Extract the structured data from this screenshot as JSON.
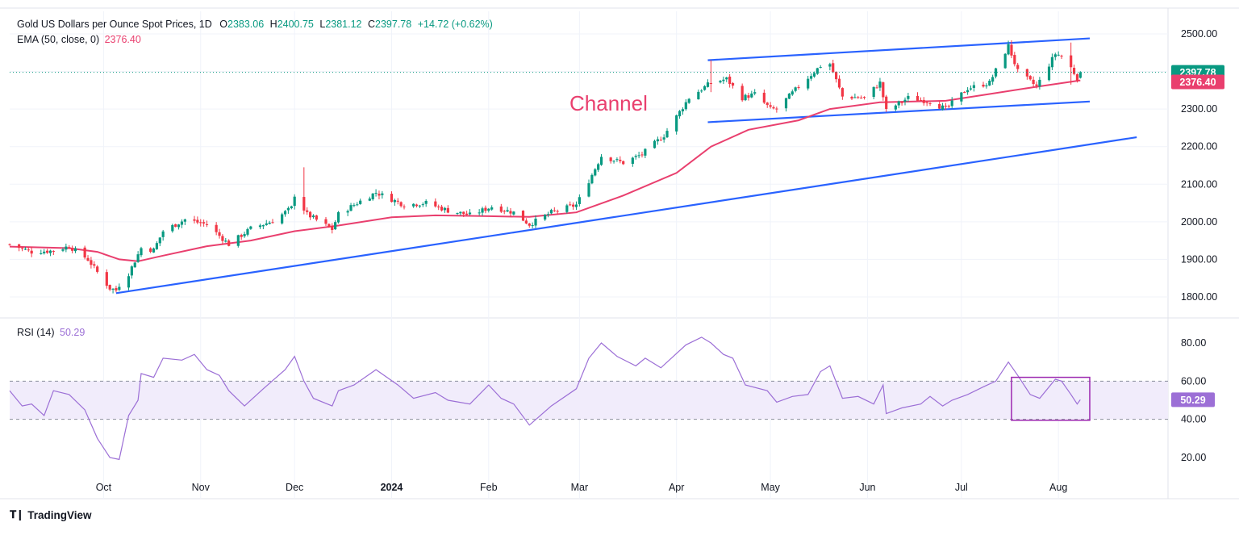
{
  "header": {
    "symbol": "Gold US Dollars per Ounce Spot Prices, 1D",
    "open_label": "O",
    "open": "2383.06",
    "high_label": "H",
    "high": "2400.75",
    "low_label": "L",
    "low": "2381.12",
    "close_label": "C",
    "close": "2397.78",
    "change": "+14.72 (+0.62%)"
  },
  "ema_legend": {
    "label": "EMA (50, close, 0)",
    "value": "2376.40"
  },
  "rsi_legend": {
    "label": "RSI (14)",
    "value": "50.29"
  },
  "annotation": {
    "text": "Channel"
  },
  "price_axis": {
    "ticks": [
      "2500.00",
      "2400.00",
      "2300.00",
      "2200.00",
      "2100.00",
      "2000.00",
      "1900.00",
      "1800.00"
    ],
    "last_price_badge": "2397.78",
    "ema_badge": "2376.40"
  },
  "rsi_axis": {
    "ticks": [
      "80.00",
      "60.00",
      "40.00",
      "20.00"
    ],
    "badge": "50.29"
  },
  "time_axis": {
    "labels": [
      "Oct",
      "Nov",
      "Dec",
      "2024",
      "Feb",
      "Mar",
      "Apr",
      "May",
      "Jun",
      "Jul",
      "Aug"
    ]
  },
  "footer": {
    "brand": "TradingView"
  },
  "colors": {
    "up": "#089981",
    "down": "#f23645",
    "ema": "#e93f6e",
    "rsi": "#9c6fd6",
    "trend": "#2962ff"
  },
  "chart_data": [
    {
      "type": "candlestick",
      "title": "Gold US Dollars per Ounce Spot Prices, 1D",
      "ylim": [
        1760,
        2530
      ],
      "x_range": [
        "2023-09-01",
        "2024-09-05"
      ],
      "last": {
        "open": 2383.06,
        "high": 2400.75,
        "low": 2381.12,
        "close": 2397.78
      },
      "close_path": [
        [
          "2023-09-01",
          1940
        ],
        [
          "2023-09-08",
          1920
        ],
        [
          "2023-09-15",
          1923
        ],
        [
          "2023-09-20",
          1935
        ],
        [
          "2023-09-26",
          1900
        ],
        [
          "2023-09-29",
          1866
        ],
        [
          "2023-10-03",
          1823
        ],
        [
          "2023-10-05",
          1818
        ],
        [
          "2023-10-06",
          1832
        ],
        [
          "2023-10-09",
          1862
        ],
        [
          "2023-10-13",
          1930
        ],
        [
          "2023-10-17",
          1925
        ],
        [
          "2023-10-20",
          1975
        ],
        [
          "2023-10-27",
          2006
        ],
        [
          "2023-11-03",
          1993
        ],
        [
          "2023-11-10",
          1940
        ],
        [
          "2023-11-17",
          1982
        ],
        [
          "2023-11-24",
          2002
        ],
        [
          "2023-11-30",
          2037
        ],
        [
          "2023-12-01",
          2072
        ],
        [
          "2023-12-05",
          2020
        ],
        [
          "2023-12-08",
          2005
        ],
        [
          "2023-12-13",
          1980
        ],
        [
          "2023-12-15",
          2020
        ],
        [
          "2023-12-22",
          2055
        ],
        [
          "2023-12-27",
          2078
        ],
        [
          "2024-01-05",
          2045
        ],
        [
          "2024-01-12",
          2050
        ],
        [
          "2024-01-19",
          2030
        ],
        [
          "2024-01-26",
          2018
        ],
        [
          "2024-02-02",
          2040
        ],
        [
          "2024-02-09",
          2025
        ],
        [
          "2024-02-14",
          1993
        ],
        [
          "2024-02-21",
          2025
        ],
        [
          "2024-02-29",
          2045
        ],
        [
          "2024-03-05",
          2125
        ],
        [
          "2024-03-08",
          2175
        ],
        [
          "2024-03-15",
          2157
        ],
        [
          "2024-03-21",
          2180
        ],
        [
          "2024-03-28",
          2230
        ],
        [
          "2024-04-05",
          2330
        ],
        [
          "2024-04-12",
          2370
        ],
        [
          "2024-04-17",
          2380
        ],
        [
          "2024-04-22",
          2330
        ],
        [
          "2024-04-26",
          2340
        ],
        [
          "2024-05-01",
          2300
        ],
        [
          "2024-05-03",
          2300
        ],
        [
          "2024-05-10",
          2360
        ],
        [
          "2024-05-17",
          2415
        ],
        [
          "2024-05-20",
          2420
        ],
        [
          "2024-05-24",
          2333
        ],
        [
          "2024-05-31",
          2330
        ],
        [
          "2024-06-05",
          2370
        ],
        [
          "2024-06-07",
          2295
        ],
        [
          "2024-06-14",
          2330
        ],
        [
          "2024-06-21",
          2320
        ],
        [
          "2024-06-26",
          2300
        ],
        [
          "2024-07-03",
          2355
        ],
        [
          "2024-07-10",
          2370
        ],
        [
          "2024-07-16",
          2468
        ],
        [
          "2024-07-19",
          2400
        ],
        [
          "2024-07-25",
          2360
        ],
        [
          "2024-07-31",
          2447
        ],
        [
          "2024-08-02",
          2442
        ],
        [
          "2024-08-05",
          2410
        ],
        [
          "2024-08-07",
          2383
        ],
        [
          "2024-08-08",
          2397.78
        ]
      ],
      "spikes": [
        {
          "date": "2023-12-04",
          "high": 2145,
          "low": 2020
        },
        {
          "date": "2024-04-12",
          "high": 2430,
          "low": 2345
        },
        {
          "date": "2024-07-17",
          "high": 2483,
          "low": 2455
        },
        {
          "date": "2024-08-05",
          "high": 2477,
          "low": 2365
        }
      ],
      "series": [
        {
          "name": "EMA (50, close, 0)",
          "type": "line",
          "points": [
            [
              "2023-09-01",
              1934
            ],
            [
              "2023-09-20",
              1930
            ],
            [
              "2023-09-29",
              1920
            ],
            [
              "2023-10-06",
              1900
            ],
            [
              "2023-10-12",
              1895
            ],
            [
              "2023-10-20",
              1910
            ],
            [
              "2023-11-03",
              1935
            ],
            [
              "2023-11-17",
              1950
            ],
            [
              "2023-12-01",
              1975
            ],
            [
              "2023-12-15",
              1990
            ],
            [
              "2024-01-01",
              2012
            ],
            [
              "2024-01-15",
              2017
            ],
            [
              "2024-02-01",
              2015
            ],
            [
              "2024-02-14",
              2013
            ],
            [
              "2024-02-29",
              2025
            ],
            [
              "2024-03-15",
              2070
            ],
            [
              "2024-04-01",
              2130
            ],
            [
              "2024-04-12",
              2200
            ],
            [
              "2024-04-24",
              2245
            ],
            [
              "2024-05-10",
              2270
            ],
            [
              "2024-05-20",
              2300
            ],
            [
              "2024-06-05",
              2318
            ],
            [
              "2024-06-26",
              2322
            ],
            [
              "2024-07-10",
              2340
            ],
            [
              "2024-07-24",
              2358
            ],
            [
              "2024-08-08",
              2376.4
            ]
          ]
        },
        {
          "name": "",
          "type": "trendline",
          "points": [
            [
              "2023-10-05",
              1810
            ],
            [
              "2024-08-26",
              2225
            ]
          ]
        },
        {
          "name": "",
          "type": "trendline",
          "points": [
            [
              "2024-04-11",
              2430
            ],
            [
              "2024-08-11",
              2488
            ]
          ]
        },
        {
          "name": "",
          "type": "trendline",
          "points": [
            [
              "2024-04-11",
              2265
            ],
            [
              "2024-08-11",
              2320
            ]
          ]
        }
      ]
    },
    {
      "type": "line",
      "title": "RSI (14)",
      "ylim": [
        10,
        90
      ],
      "band": [
        40,
        60
      ],
      "series": [
        {
          "name": "RSI (14)",
          "last": 50.29,
          "points": [
            [
              "2023-09-01",
              55
            ],
            [
              "2023-09-05",
              47
            ],
            [
              "2023-09-08",
              48
            ],
            [
              "2023-09-12",
              42
            ],
            [
              "2023-09-15",
              55
            ],
            [
              "2023-09-20",
              53
            ],
            [
              "2023-09-25",
              45
            ],
            [
              "2023-09-29",
              30
            ],
            [
              "2023-10-03",
              20
            ],
            [
              "2023-10-06",
              19
            ],
            [
              "2023-10-09",
              42
            ],
            [
              "2023-10-12",
              50
            ],
            [
              "2023-10-13",
              64
            ],
            [
              "2023-10-17",
              62
            ],
            [
              "2023-10-20",
              72
            ],
            [
              "2023-10-26",
              71
            ],
            [
              "2023-10-30",
              74
            ],
            [
              "2023-11-03",
              66
            ],
            [
              "2023-11-07",
              63
            ],
            [
              "2023-11-10",
              55
            ],
            [
              "2023-11-15",
              47
            ],
            [
              "2023-11-21",
              56
            ],
            [
              "2023-11-28",
              66
            ],
            [
              "2023-12-01",
              73
            ],
            [
              "2023-12-04",
              60
            ],
            [
              "2023-12-07",
              51
            ],
            [
              "2023-12-13",
              47
            ],
            [
              "2023-12-15",
              55
            ],
            [
              "2023-12-20",
              58
            ],
            [
              "2023-12-27",
              66
            ],
            [
              "2024-01-03",
              58
            ],
            [
              "2024-01-08",
              51
            ],
            [
              "2024-01-15",
              54
            ],
            [
              "2024-01-19",
              50
            ],
            [
              "2024-01-26",
              48
            ],
            [
              "2024-02-01",
              58
            ],
            [
              "2024-02-05",
              51
            ],
            [
              "2024-02-09",
              48
            ],
            [
              "2024-02-14",
              37
            ],
            [
              "2024-02-21",
              47
            ],
            [
              "2024-02-29",
              56
            ],
            [
              "2024-03-04",
              72
            ],
            [
              "2024-03-08",
              80
            ],
            [
              "2024-03-13",
              73
            ],
            [
              "2024-03-19",
              68
            ],
            [
              "2024-03-22",
              72
            ],
            [
              "2024-03-27",
              67
            ],
            [
              "2024-04-04",
              79
            ],
            [
              "2024-04-09",
              83
            ],
            [
              "2024-04-12",
              80
            ],
            [
              "2024-04-16",
              74
            ],
            [
              "2024-04-19",
              72
            ],
            [
              "2024-04-23",
              58
            ],
            [
              "2024-04-30",
              55
            ],
            [
              "2024-05-03",
              49
            ],
            [
              "2024-05-08",
              52
            ],
            [
              "2024-05-13",
              53
            ],
            [
              "2024-05-17",
              65
            ],
            [
              "2024-05-20",
              68
            ],
            [
              "2024-05-24",
              51
            ],
            [
              "2024-05-29",
              52
            ],
            [
              "2024-06-03",
              48
            ],
            [
              "2024-06-06",
              58
            ],
            [
              "2024-06-07",
              43
            ],
            [
              "2024-06-12",
              46
            ],
            [
              "2024-06-18",
              48
            ],
            [
              "2024-06-21",
              52
            ],
            [
              "2024-06-25",
              47
            ],
            [
              "2024-06-28",
              50
            ],
            [
              "2024-07-03",
              53
            ],
            [
              "2024-07-08",
              57
            ],
            [
              "2024-07-12",
              60
            ],
            [
              "2024-07-16",
              70
            ],
            [
              "2024-07-19",
              63
            ],
            [
              "2024-07-23",
              53
            ],
            [
              "2024-07-26",
              51
            ],
            [
              "2024-07-31",
              61
            ],
            [
              "2024-08-02",
              60
            ],
            [
              "2024-08-05",
              53
            ],
            [
              "2024-08-07",
              48
            ],
            [
              "2024-08-08",
              50.29
            ]
          ]
        }
      ]
    }
  ]
}
